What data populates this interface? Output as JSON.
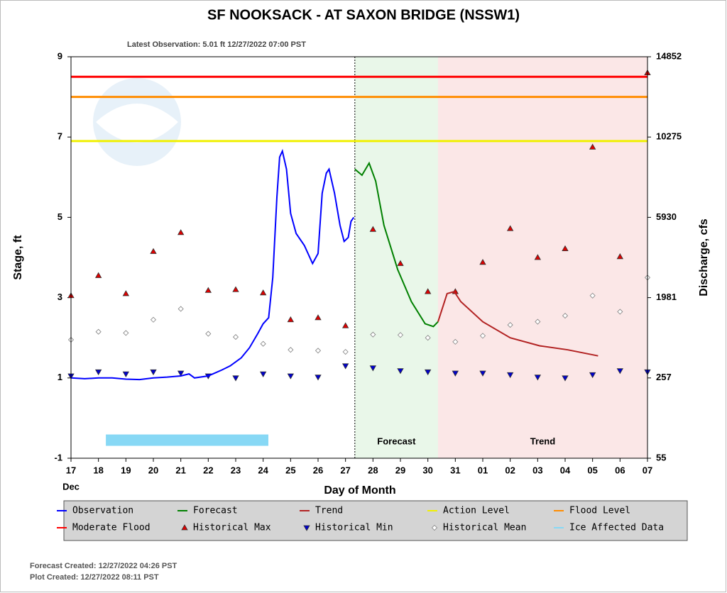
{
  "chart_data": {
    "type": "line",
    "title": "SF NOOKSACK - AT SAXON BRIDGE  (NSSW1)",
    "subtitle": "Latest Observation: 5.01 ft 12/27/2022 07:00 PST",
    "x_label": "Day of Month",
    "x_month": "Dec",
    "y_label": "Stage, ft",
    "y2_label": "Discharge, cfs",
    "xlim": [
      0,
      21
    ],
    "xticks": [
      {
        "value": 0,
        "label": "17"
      },
      {
        "value": 1,
        "label": "18"
      },
      {
        "value": 2,
        "label": "19"
      },
      {
        "value": 3,
        "label": "20"
      },
      {
        "value": 4,
        "label": "21"
      },
      {
        "value": 5,
        "label": "22"
      },
      {
        "value": 6,
        "label": "23"
      },
      {
        "value": 7,
        "label": "24"
      },
      {
        "value": 8,
        "label": "25"
      },
      {
        "value": 9,
        "label": "26"
      },
      {
        "value": 10,
        "label": "27"
      },
      {
        "value": 11,
        "label": "28"
      },
      {
        "value": 12,
        "label": "29"
      },
      {
        "value": 13,
        "label": "30"
      },
      {
        "value": 14,
        "label": "31"
      },
      {
        "value": 15,
        "label": "01"
      },
      {
        "value": 16,
        "label": "02"
      },
      {
        "value": 17,
        "label": "03"
      },
      {
        "value": 18,
        "label": "04"
      },
      {
        "value": 19,
        "label": "05"
      },
      {
        "value": 20,
        "label": "06"
      },
      {
        "value": 21,
        "label": "07"
      }
    ],
    "ylim": [
      -1,
      9
    ],
    "yticks": [
      -1,
      1,
      3,
      5,
      7,
      9
    ],
    "y2ticks": [
      55,
      257,
      1981,
      5930,
      10275,
      14852
    ],
    "regions": [
      {
        "label": "Forecast",
        "x": [
          10.34,
          13.37
        ],
        "color": "#e9f7e9"
      },
      {
        "label": "Trend",
        "x": [
          13.37,
          21
        ],
        "color": "#fbe7e7"
      }
    ],
    "series": [
      {
        "name": "Observation",
        "kind": "line",
        "color": "#0000ff",
        "x": [
          0,
          0.5,
          1,
          1.5,
          2,
          2.5,
          3,
          3.5,
          4,
          4.3,
          4.5,
          5,
          5.5,
          5.8,
          6.2,
          6.5,
          6.8,
          7,
          7.2,
          7.35,
          7.5,
          7.6,
          7.7,
          7.85,
          8,
          8.2,
          8.5,
          8.8,
          9,
          9.15,
          9.3,
          9.4,
          9.6,
          9.8,
          9.95,
          10.1,
          10.2,
          10.3
        ],
        "values": [
          1.0,
          0.98,
          1.0,
          1.0,
          0.97,
          0.96,
          1.0,
          1.02,
          1.05,
          1.1,
          1.0,
          1.05,
          1.2,
          1.3,
          1.5,
          1.75,
          2.1,
          2.35,
          2.5,
          3.5,
          5.5,
          6.5,
          6.65,
          6.2,
          5.1,
          4.6,
          4.3,
          3.85,
          4.1,
          5.6,
          6.1,
          6.2,
          5.6,
          4.8,
          4.4,
          4.5,
          4.9,
          5.0
        ]
      },
      {
        "name": "Forecast",
        "kind": "line",
        "color": "#008000",
        "x": [
          10.34,
          10.6,
          10.86,
          11.1,
          11.4,
          11.9,
          12.4,
          12.9,
          13.2,
          13.37
        ],
        "values": [
          6.2,
          6.05,
          6.35,
          5.9,
          4.8,
          3.7,
          2.9,
          2.35,
          2.28,
          2.4
        ]
      },
      {
        "name": "Trend",
        "kind": "line",
        "color": "#b22222",
        "x": [
          13.37,
          13.7,
          13.96,
          14.2,
          15.0,
          16.0,
          17.07,
          18.1,
          19.2
        ],
        "values": [
          2.4,
          3.1,
          3.15,
          2.9,
          2.4,
          2.0,
          1.8,
          1.7,
          1.55
        ]
      },
      {
        "name": "Action Level",
        "kind": "level",
        "color": "#f0f000",
        "value": 6.9
      },
      {
        "name": "Flood Level",
        "kind": "level",
        "color": "#ff8c00",
        "value": 8.0
      },
      {
        "name": "Moderate Flood",
        "kind": "level",
        "color": "#ff0000",
        "value": 8.5
      },
      {
        "name": "Historical Max",
        "kind": "marker-up",
        "color": "#dd0000",
        "x": [
          0,
          1,
          2,
          3,
          4,
          5,
          6,
          7,
          8,
          9,
          10,
          11,
          12,
          13,
          14,
          15,
          16,
          17,
          18,
          19,
          20,
          21
        ],
        "values": [
          3.05,
          3.55,
          3.1,
          4.15,
          4.62,
          3.18,
          3.2,
          3.12,
          2.45,
          2.5,
          2.3,
          4.7,
          3.85,
          3.15,
          3.15,
          3.88,
          4.72,
          4.0,
          4.22,
          6.75,
          4.02,
          8.6
        ]
      },
      {
        "name": "Historical Min",
        "kind": "marker-down",
        "color": "#0000cc",
        "x": [
          0,
          1,
          2,
          3,
          4,
          5,
          6,
          7,
          8,
          9,
          10,
          11,
          12,
          13,
          14,
          15,
          16,
          17,
          18,
          19,
          20,
          21
        ],
        "values": [
          1.05,
          1.15,
          1.1,
          1.15,
          1.12,
          1.05,
          1.0,
          1.1,
          1.05,
          1.02,
          1.3,
          1.25,
          1.18,
          1.15,
          1.12,
          1.12,
          1.08,
          1.02,
          1.0,
          1.08,
          1.18,
          1.15
        ]
      },
      {
        "name": "Historical Mean",
        "kind": "marker-diamond",
        "color": "#808080",
        "x": [
          0,
          1,
          2,
          3,
          4,
          5,
          6,
          7,
          8,
          9,
          10,
          11,
          12,
          13,
          14,
          15,
          16,
          17,
          18,
          19,
          20,
          21
        ],
        "values": [
          1.95,
          2.15,
          2.12,
          2.45,
          2.72,
          2.1,
          2.02,
          1.85,
          1.7,
          1.68,
          1.65,
          2.08,
          2.07,
          2.0,
          1.9,
          2.05,
          2.32,
          2.4,
          2.55,
          3.05,
          2.65,
          3.5
        ]
      },
      {
        "name": "Ice Affected Data",
        "kind": "band",
        "color": "#87d8f5",
        "x": [
          1.27,
          7.19
        ],
        "value": -0.55
      }
    ],
    "footer": [
      "Forecast Created: 12/27/2022 04:26 PST",
      "Plot Created: 12/27/2022 08:11 PST"
    ]
  }
}
